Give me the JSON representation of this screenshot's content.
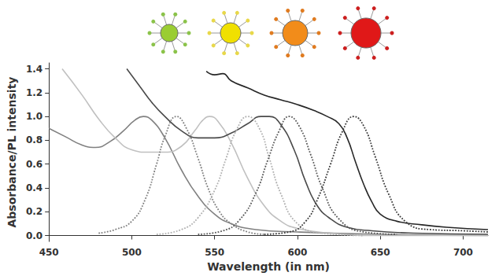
{
  "chart_data": {
    "type": "line",
    "x_label": "Wavelength (in nm)",
    "y_label": "Absorbance/PL intensity",
    "xlim": [
      450,
      715
    ],
    "xticks": [
      450,
      500,
      550,
      600,
      650,
      700
    ],
    "ylim": [
      -0.05,
      1.45
    ],
    "yticks": [
      {
        "value": 0,
        "label": "0.0"
      },
      0.2,
      0.4,
      0.6,
      0.8,
      {
        "value": 1,
        "label": "1.0"
      },
      1.2,
      1.4
    ],
    "grid": false,
    "series": [
      {
        "color": "#808080",
        "line_style": "solid",
        "x": [
          450,
          460,
          470,
          478,
          487,
          495,
          502,
          507,
          512,
          520,
          530,
          540,
          550,
          560,
          575,
          600,
          650,
          715
        ],
        "values": [
          0.9,
          0.83,
          0.76,
          0.74,
          0.79,
          0.88,
          0.97,
          1.0,
          0.97,
          0.82,
          0.55,
          0.33,
          0.18,
          0.1,
          0.05,
          0.03,
          0.01,
          0.0
        ]
      },
      {
        "color": "#c0c0c0",
        "line_style": "solid",
        "x": [
          458,
          470,
          480,
          490,
          500,
          510,
          520,
          530,
          538,
          543,
          547,
          552,
          560,
          570,
          580,
          590,
          600,
          620,
          650,
          715
        ],
        "values": [
          1.4,
          1.18,
          0.98,
          0.82,
          0.72,
          0.7,
          0.7,
          0.75,
          0.88,
          0.97,
          1.0,
          0.96,
          0.78,
          0.48,
          0.25,
          0.12,
          0.06,
          0.02,
          0.0,
          0.0
        ]
      },
      {
        "color": "#4a4a4a",
        "line_style": "solid",
        "x": [
          497,
          505,
          512,
          520,
          530,
          540,
          550,
          560,
          570,
          578,
          583,
          590,
          598,
          605,
          612,
          620,
          630,
          645,
          670,
          715
        ],
        "values": [
          1.4,
          1.25,
          1.12,
          1.0,
          0.88,
          0.82,
          0.82,
          0.86,
          0.94,
          1.0,
          1.0,
          0.93,
          0.72,
          0.45,
          0.25,
          0.14,
          0.07,
          0.04,
          0.02,
          0.01
        ]
      },
      {
        "color": "#262626",
        "line_style": "solid",
        "x": [
          545,
          550,
          555,
          560,
          570,
          580,
          590,
          600,
          610,
          618,
          625,
          630,
          635,
          640,
          645,
          650,
          660,
          675,
          690,
          715
        ],
        "values": [
          1.38,
          1.35,
          1.36,
          1.3,
          1.24,
          1.18,
          1.14,
          1.1,
          1.05,
          1.0,
          0.94,
          0.82,
          0.62,
          0.43,
          0.28,
          0.18,
          0.12,
          0.09,
          0.07,
          0.05
        ]
      },
      {
        "color": "#808080",
        "line_style": "dotted",
        "x": [
          480,
          490,
          500,
          508,
          515,
          520,
          527,
          533,
          540,
          546,
          553,
          560,
          570,
          580
        ],
        "values": [
          0.02,
          0.05,
          0.12,
          0.3,
          0.6,
          0.83,
          1.0,
          0.9,
          0.65,
          0.4,
          0.2,
          0.1,
          0.03,
          0.01
        ]
      },
      {
        "color": "#b0b0b0",
        "line_style": "dotted",
        "x": [
          515,
          530,
          540,
          550,
          557,
          563,
          570,
          577,
          583,
          590,
          600,
          615,
          640
        ],
        "values": [
          0.01,
          0.05,
          0.15,
          0.38,
          0.65,
          0.88,
          1.0,
          0.9,
          0.65,
          0.35,
          0.1,
          0.02,
          0.0
        ]
      },
      {
        "color": "#5a5a5a",
        "line_style": "dotted",
        "x": [
          540,
          555,
          565,
          575,
          582,
          589,
          595,
          601,
          608,
          615,
          625,
          640,
          660
        ],
        "values": [
          0.01,
          0.04,
          0.13,
          0.36,
          0.63,
          0.88,
          1.0,
          0.92,
          0.68,
          0.4,
          0.14,
          0.03,
          0.01
        ]
      },
      {
        "color": "#3a3a3a",
        "line_style": "dotted",
        "x": [
          580,
          595,
          605,
          612,
          620,
          627,
          634,
          640,
          647,
          655,
          665,
          680,
          700,
          715
        ],
        "values": [
          0.01,
          0.03,
          0.12,
          0.3,
          0.6,
          0.87,
          1.0,
          0.92,
          0.66,
          0.35,
          0.12,
          0.05,
          0.04,
          0.03
        ]
      }
    ]
  }
}
